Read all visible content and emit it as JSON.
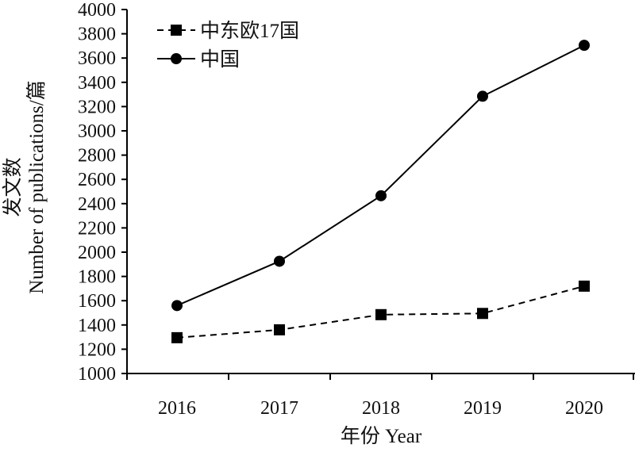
{
  "chart_data": {
    "type": "line",
    "title": "",
    "xlabel": "年份 Year",
    "ylabel_cn": "发文数",
    "ylabel_en": "Number of publications/篇",
    "categories": [
      "2016",
      "2017",
      "2018",
      "2019",
      "2020"
    ],
    "ylim": [
      1000,
      4000
    ],
    "yticks": [
      1000,
      1200,
      1400,
      1600,
      1800,
      2000,
      2200,
      2400,
      2600,
      2800,
      3000,
      3200,
      3400,
      3600,
      3800,
      4000
    ],
    "grid": false,
    "legend_position": "top-left",
    "series": [
      {
        "name": "中东欧17国",
        "values": [
          1295,
          1360,
          1485,
          1495,
          1720
        ],
        "marker": "square",
        "line_style": "dashed",
        "color": "#000000"
      },
      {
        "name": "中国",
        "values": [
          1560,
          1925,
          2465,
          3285,
          3705
        ],
        "marker": "circle",
        "line_style": "solid",
        "color": "#000000"
      }
    ]
  }
}
